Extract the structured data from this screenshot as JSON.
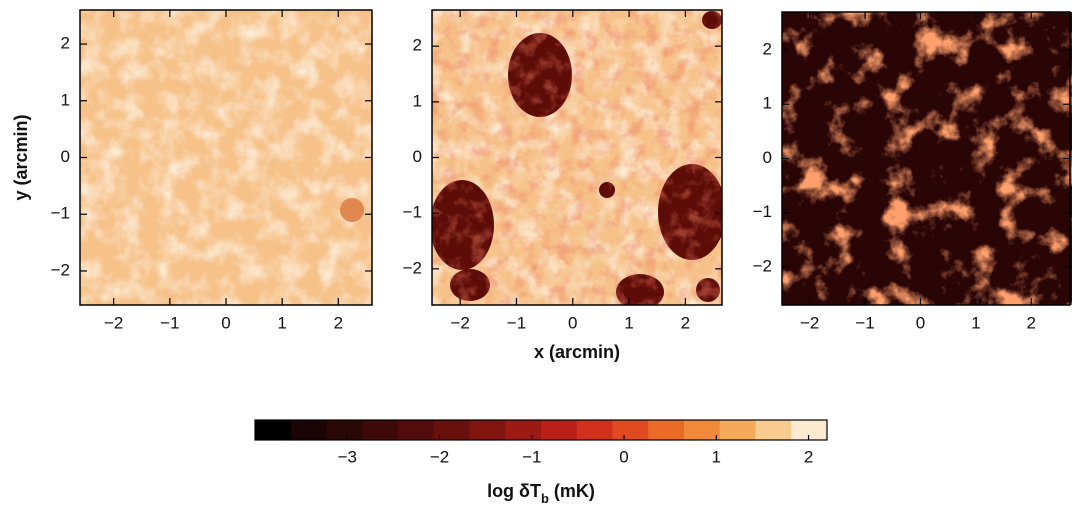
{
  "chart_data": [
    {
      "type": "heatmap",
      "ylabel": "y (arcmin)",
      "xlim": [
        -2.6,
        2.6
      ],
      "ylim": [
        -2.6,
        2.6
      ],
      "xticks": [
        {
          "value": -2,
          "label": "−2"
        },
        {
          "value": -1,
          "label": "−1"
        },
        0,
        1,
        2
      ],
      "yticks": [
        {
          "value": -2,
          "label": "−2"
        },
        {
          "value": -1,
          "label": "−1"
        },
        0,
        1,
        2
      ]
    },
    {
      "type": "heatmap",
      "xlabel": "x (arcmin)",
      "xlim": [
        -2.5,
        2.65
      ],
      "ylim": [
        -2.65,
        2.65
      ],
      "xticks": [
        {
          "value": -2,
          "label": "−2"
        },
        {
          "value": -1,
          "label": "−1"
        },
        0,
        1,
        2
      ],
      "yticks": [
        {
          "value": -2,
          "label": "−2"
        },
        {
          "value": -1,
          "label": "−1"
        },
        0,
        1,
        2
      ]
    },
    {
      "type": "heatmap",
      "xlim": [
        -2.5,
        2.7
      ],
      "ylim": [
        -2.7,
        2.7
      ],
      "xticks": [
        {
          "value": -2,
          "label": "−2"
        },
        {
          "value": -1,
          "label": "−1"
        },
        0,
        1,
        2
      ],
      "yticks": [
        {
          "value": -2,
          "label": "−2"
        },
        {
          "value": -1,
          "label": "−1"
        },
        0,
        1,
        2
      ]
    },
    {
      "type": "colorbar",
      "label_parts": [
        "log δT",
        "b",
        " (mK)"
      ],
      "xlim": [
        -4,
        2.2
      ],
      "xticks": [
        {
          "value": -3,
          "label": "−3"
        },
        {
          "value": -2,
          "label": "−2"
        },
        {
          "value": -1,
          "label": "−1"
        },
        0,
        1,
        2
      ],
      "colors": [
        "#000000",
        "#1a0504",
        "#2a0806",
        "#3d0a08",
        "#520d0a",
        "#6a100c",
        "#821410",
        "#9c1a14",
        "#b82018",
        "#d0301c",
        "#e04a20",
        "#ea6a28",
        "#f08a3a",
        "#f5aa5a",
        "#f8cc90",
        "#fbead0"
      ]
    }
  ]
}
